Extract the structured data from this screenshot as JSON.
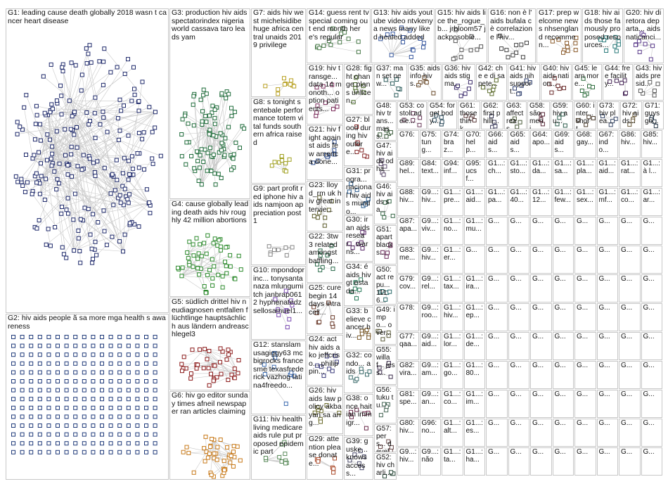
{
  "groups": [
    {
      "id": "g1",
      "label": "G1: leading cause death globally 2018 wasn t cancer heart disease",
      "color": "#1f2a6b"
    },
    {
      "id": "g2",
      "label": "G2: hiv aids people ã sa more mga health s awareness",
      "color": "#1f3a7a"
    },
    {
      "id": "g3",
      "label": "G3: production hiv aids spectatorindex nigeria world cassava taro leads yam",
      "color": "#1e6b3a"
    },
    {
      "id": "g4",
      "label": "G4: cause globally leading death aids hiv roughly 42 million abortions",
      "color": "#2e8b2e"
    },
    {
      "id": "g5",
      "label": "G5: südlich drittel hiv neudiagnosen entfallen flüchtlinge hauptsächlich aus ländern andreaschlegel3",
      "color": "#8b1a1a"
    },
    {
      "id": "g6",
      "label": "G6: hiv go editor sunday times afneil newspaper ran articles claiming",
      "color": "#c87a1a"
    },
    {
      "id": "g7",
      "label": "G7: aids hiv west michelsidibe huge africa central unaids 2019 privilege",
      "color": "#b8a020"
    },
    {
      "id": "g8",
      "label": "G8: s tonight sentebale performance totem vital funds southern africa raised",
      "color": "#a0a020"
    },
    {
      "id": "g9",
      "label": "G9: part profit red iphone hiv aids namjoon appreciation post 1",
      "color": "#888888"
    },
    {
      "id": "g10",
      "label": "G10: mpondoprinc... tonysantanaza mlungumitch janbrap0612 hyphenatedz sellosamuel1...",
      "color": "#7a4ab0"
    },
    {
      "id": "g12",
      "label": "G12: stanslam usagiggy63 mcbigrocks francesme texasfrederick vazhog latina4freedo...",
      "color": "#3a6ab0"
    },
    {
      "id": "g11",
      "label": "G11: hiv health living medicare aids rule put proposed epidemic part",
      "color": "#5a8a5a"
    },
    {
      "id": "g14",
      "label": "G14: guess rent tv special coming out end month here's regular",
      "color": "#4a7a4a"
    },
    {
      "id": "g13",
      "label": "G13: hiv aids youtube video ntvkenya news many liked healed added",
      "color": "#3a5aa0"
    },
    {
      "id": "g15",
      "label": "G15: hiv aids lice the_rogue_b... jrbloom57 jackposobie...",
      "color": "#555555"
    },
    {
      "id": "g16",
      "label": "G16: non è l' aids bufala cè correlazione l'hiv...",
      "color": "#444444"
    },
    {
      "id": "g17",
      "label": "G17: prep welcome news nhsengland recommen...",
      "color": "#8a5a2a"
    },
    {
      "id": "g18",
      "label": "G18: hiv aids those famously proposed resources...",
      "color": "#2a7a7a"
    },
    {
      "id": "g20",
      "label": "G20: hiv diretora departa... aids naticanci...",
      "color": "#5a3a8a"
    },
    {
      "id": "g19",
      "label": "G19: hiv transge... data 14 monoth... option patients...",
      "color": "#7a2a5a"
    },
    {
      "id": "g21",
      "label": "G21: hiv fight against aids few america done...",
      "color": "#2a4a8a"
    },
    {
      "id": "g23",
      "label": "G23: lloyd_rm uk hiv great intervie...",
      "color": "#5a5a2a"
    },
    {
      "id": "g22",
      "label": "G22: 3tw3 related amongst baffling...",
      "color": "#2a6a4a"
    },
    {
      "id": "g25",
      "label": "G25: cure begin 14 days intracell...",
      "color": "#6a3a2a"
    },
    {
      "id": "g24",
      "label": "G24: act hiv aids ako jeffcriso... philippin...",
      "color": "#3a3a7a"
    },
    {
      "id": "g26",
      "label": "G26: hiv aids law policy akbayan sa ang...",
      "color": "#6a6a2a"
    },
    {
      "id": "g29",
      "label": "G29: attention please donate...",
      "color": "#aa4a2a"
    },
    {
      "id": "g28",
      "label": "G28: fight change plans unlicen...",
      "color": "#4a6a2a"
    },
    {
      "id": "g27",
      "label": "G27: blood during hiv outbre...",
      "color": "#8a2a2a"
    },
    {
      "id": "g31",
      "label": "G31: progra... nacional hiv aids mundo...",
      "color": "#2a5a8a"
    },
    {
      "id": "g30",
      "label": "G30: iran aids resear... warns...",
      "color": "#5a2a6a"
    },
    {
      "id": "g34",
      "label": "G34: é aids hiv gt estada...",
      "color": "#2a7a5a"
    },
    {
      "id": "g33",
      "label": "G33: believe cancer hiv...",
      "color": "#7a5a2a"
    },
    {
      "id": "g32",
      "label": "G32: condo... aids",
      "color": "#3a6a6a"
    },
    {
      "id": "g38",
      "label": "G38: once haitian immigr...",
      "color": "#6a2a4a"
    },
    {
      "id": "g39",
      "label": "G39: guske... knows access...",
      "color": "#4a4a6a"
    },
    {
      "id": "g37",
      "label": "G37: man set new...",
      "color": "#2a5a5a"
    },
    {
      "id": "g35",
      "label": "G35: aidsinfo hiv s...",
      "color": "#6a4a2a"
    },
    {
      "id": "g36",
      "label": "G36: hiv aids stigma...",
      "color": "#3a2a6a"
    },
    {
      "id": "g42",
      "label": "G42: che e di sapete...",
      "color": "#5a6a2a"
    },
    {
      "id": "g41",
      "label": "G41: hiv aids nih support...",
      "color": "#2a3a6a"
    },
    {
      "id": "g40",
      "label": "G40: hiv aids nation...",
      "color": "#6a2a2a"
    },
    {
      "id": "g45",
      "label": "G45: learn more...",
      "color": "#2a6a3a"
    },
    {
      "id": "g44",
      "label": "G44: free facility...",
      "color": "#4a2a5a"
    },
    {
      "id": "g43",
      "label": "G43: hiv aids presid...",
      "color": "#5a5a5a"
    },
    {
      "id": "g48",
      "label": "G48: hiv trans... mass...",
      "color": "#3a5a3a"
    },
    {
      "id": "g53",
      "label": "G53: costoli adele...",
      "color": "#6a3a5a"
    },
    {
      "id": "g54",
      "label": "G54: forget body...",
      "color": "#2a4a5a"
    },
    {
      "id": "g61",
      "label": "G61: those think...",
      "color": "#5a3a3a"
    },
    {
      "id": "g62",
      "label": "G62: first philli...",
      "color": "#3a3a5a"
    },
    {
      "id": "g63",
      "label": "G63: affect reas...",
      "color": "#4a5a3a"
    },
    {
      "id": "g58",
      "label": "G58: são meni...",
      "color": "#5a2a3a"
    },
    {
      "id": "g59",
      "label": "G59: hiv au...",
      "color": "#2a5a4a"
    },
    {
      "id": "g60",
      "label": "G60: inter... short...",
      "color": "#4a3a2a"
    },
    {
      "id": "g73",
      "label": "G73: hiv plea...",
      "color": "#3a4a6a"
    },
    {
      "id": "g72",
      "label": "G72: hiv aids...",
      "color": "#6a5a3a"
    },
    {
      "id": "g71",
      "label": "G71: guys go...",
      "color": "#2a3a4a"
    },
    {
      "id": "g47",
      "label": "G47: hiv aids odha...",
      "color": "#5a4a6a"
    },
    {
      "id": "g46",
      "label": "G46: hiv aids sa...",
      "color": "#3a6a4a"
    },
    {
      "id": "g51",
      "label": "G51: apart blacks...",
      "color": "#6a2a5a"
    },
    {
      "id": "g50",
      "label": "G50: act repu... 1116...",
      "color": "#2a6a6a"
    },
    {
      "id": "g49",
      "label": "G49: impo... over...",
      "color": "#5a5a3a"
    },
    {
      "id": "g55",
      "label": "G55: willaf... jess...",
      "color": "#3a2a4a"
    },
    {
      "id": "g56",
      "label": "G56: tuku tu...",
      "color": "#4a6a5a"
    },
    {
      "id": "g57",
      "label": "G57: pers... devel...",
      "color": "#6a4a4a"
    },
    {
      "id": "g52",
      "label": "G52: hiv charli...",
      "color": "#2a4a3a"
    }
  ],
  "small_groups": {
    "row1": [
      "G76:",
      "G75: tung...",
      "G74: braz...",
      "G70: help...",
      "G66: aids...",
      "G65: aids...",
      "G64: apo...",
      "G69: aids...",
      "G68: gay...",
      "G67: indo...",
      "G86: hiv...",
      "G85: hiv..."
    ],
    "row2": [
      "G89: hel...",
      "G84: text...",
      "G94: inf...",
      "G95: ucsf...",
      "G1...: ch...",
      "G1...: sto...",
      "G1...: da...",
      "G1...: sa...",
      "G1...: pla...",
      "G1...: aid...",
      "G1...: rat...",
      "G1...: à l..."
    ],
    "row3": [
      "G88: hiv...",
      "G9...: hiv...",
      "G1...: pre...",
      "G1...: aid...",
      "G1...: pa...",
      "G1...: 40...",
      "G1...: 12...",
      "G1...: few...",
      "G1...: sex...",
      "G1...: mf...",
      "G1...: co...",
      "G1...: ar..."
    ],
    "row4": [
      "G87: apa...",
      "G9...: viv...",
      "G1...: no...",
      "G1...: mu..."
    ],
    "row5": [
      "G83: me...",
      "G9...: hiv...",
      "G1...: er..."
    ],
    "row6": [
      "G79: cov...",
      "G9...: rel...",
      "G1...: tax...",
      "G1...: ira..."
    ],
    "row7": [
      "G78:",
      "G9...: roo...",
      "G1...: hiv...",
      "G1...: ep..."
    ],
    "row8": [
      "G77: qaa...",
      "G9...: aid...",
      "G1...: lor...",
      "G1...: de..."
    ],
    "row9": [
      "G82: vira...",
      "G9...: am...",
      "G1...: go...",
      "G1...: 80..."
    ],
    "row10": [
      "G81: spe...",
      "G9...: an...",
      "G1...: co...",
      "G1...: im..."
    ],
    "row11": [
      "G80: hiv...",
      "G96: no...",
      "G1...: alt...",
      "G1...: es..."
    ],
    "row12": [
      "G9...: hiv...",
      "G9...: não",
      "G1...: ta...",
      "G1...: ha..."
    ]
  },
  "colors": {
    "edge": "#c9c9c9",
    "border": "#c7c7c7",
    "node_stroke": "#333333"
  }
}
